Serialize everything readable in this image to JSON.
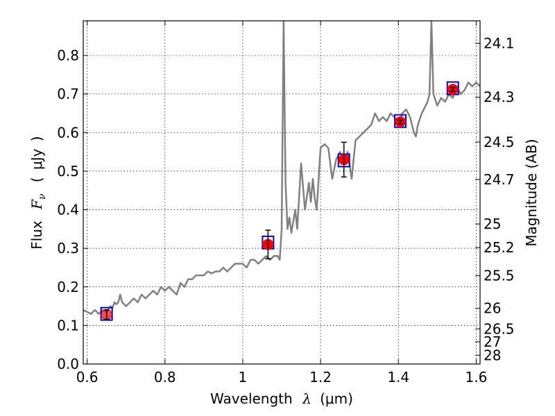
{
  "chart_data": {
    "type": "scatter",
    "title": "",
    "xlabel": {
      "text": "Wavelength",
      "symbol": "λ",
      "open": "(",
      "unit": "μm",
      "close": ")"
    },
    "ylabel": {
      "text": "Flux",
      "symbol": "F",
      "subscript": "ν",
      "open": "(",
      "unit": "μJy",
      "close": ")"
    },
    "y2label": "Magnitude (AB)",
    "xlim": [
      0.59,
      1.61
    ],
    "ylim": [
      0.0,
      0.89
    ],
    "grid": true,
    "xticks": [
      {
        "value": 0.6,
        "label": "0.6"
      },
      {
        "value": 0.8,
        "label": "0.8"
      },
      {
        "value": 1.0,
        "label": "1"
      },
      {
        "value": 1.2,
        "label": "1.2"
      },
      {
        "value": 1.4,
        "label": "1.4"
      },
      {
        "value": 1.6,
        "label": "1.6"
      }
    ],
    "yticks": [
      {
        "value": 0.0,
        "label": "0.0"
      },
      {
        "value": 0.1,
        "label": "0.1"
      },
      {
        "value": 0.2,
        "label": "0.2"
      },
      {
        "value": 0.3,
        "label": "0.3"
      },
      {
        "value": 0.4,
        "label": "0.4"
      },
      {
        "value": 0.5,
        "label": "0.5"
      },
      {
        "value": 0.6,
        "label": "0.6"
      },
      {
        "value": 0.7,
        "label": "0.7"
      },
      {
        "value": 0.8,
        "label": "0.8"
      }
    ],
    "y2ticks": [
      {
        "value": 24.1,
        "label": "24.1"
      },
      {
        "value": 24.3,
        "label": "24.3"
      },
      {
        "value": 24.5,
        "label": "24.5"
      },
      {
        "value": 24.7,
        "label": "24.7"
      },
      {
        "value": 25.0,
        "label": "25"
      },
      {
        "value": 25.2,
        "label": "25.2"
      },
      {
        "value": 25.5,
        "label": "25.5"
      },
      {
        "value": 26.0,
        "label": "26"
      },
      {
        "value": 26.5,
        "label": "26.5"
      },
      {
        "value": 27.0,
        "label": "27"
      },
      {
        "value": 28.0,
        "label": "28"
      }
    ],
    "series": [
      {
        "type": "line",
        "color": "#808080",
        "x": [
          0.59,
          0.6,
          0.61,
          0.62,
          0.63,
          0.64,
          0.65,
          0.66,
          0.665,
          0.67,
          0.675,
          0.68,
          0.685,
          0.69,
          0.7,
          0.71,
          0.72,
          0.73,
          0.74,
          0.75,
          0.76,
          0.77,
          0.78,
          0.79,
          0.8,
          0.81,
          0.82,
          0.83,
          0.84,
          0.85,
          0.86,
          0.87,
          0.88,
          0.89,
          0.9,
          0.91,
          0.92,
          0.93,
          0.94,
          0.95,
          0.96,
          0.97,
          0.98,
          0.99,
          1.0,
          1.01,
          1.02,
          1.03,
          1.04,
          1.05,
          1.06,
          1.07,
          1.08,
          1.09,
          1.095,
          1.1,
          1.105,
          1.11,
          1.115,
          1.12,
          1.125,
          1.13,
          1.135,
          1.14,
          1.15,
          1.16,
          1.17,
          1.175,
          1.18,
          1.185,
          1.19,
          1.2,
          1.21,
          1.22,
          1.23,
          1.24,
          1.25,
          1.26,
          1.27,
          1.28,
          1.29,
          1.3,
          1.31,
          1.32,
          1.33,
          1.34,
          1.35,
          1.36,
          1.37,
          1.38,
          1.39,
          1.4,
          1.41,
          1.42,
          1.43,
          1.44,
          1.445,
          1.45,
          1.46,
          1.47,
          1.475,
          1.48,
          1.485,
          1.49,
          1.5,
          1.51,
          1.52,
          1.53,
          1.54,
          1.55,
          1.56,
          1.57,
          1.58,
          1.59,
          1.6,
          1.61
        ],
        "y": [
          0.14,
          0.135,
          0.13,
          0.14,
          0.13,
          0.14,
          0.135,
          0.15,
          0.145,
          0.16,
          0.155,
          0.16,
          0.18,
          0.16,
          0.15,
          0.16,
          0.17,
          0.16,
          0.18,
          0.17,
          0.18,
          0.19,
          0.18,
          0.2,
          0.19,
          0.2,
          0.19,
          0.18,
          0.21,
          0.2,
          0.22,
          0.22,
          0.23,
          0.23,
          0.23,
          0.24,
          0.235,
          0.24,
          0.24,
          0.25,
          0.24,
          0.25,
          0.26,
          0.26,
          0.26,
          0.25,
          0.27,
          0.27,
          0.26,
          0.27,
          0.28,
          0.27,
          0.28,
          0.28,
          0.27,
          0.35,
          0.89,
          0.47,
          0.35,
          0.38,
          0.34,
          0.37,
          0.4,
          0.35,
          0.52,
          0.4,
          0.47,
          0.42,
          0.48,
          0.43,
          0.4,
          0.56,
          0.57,
          0.56,
          0.48,
          0.53,
          0.55,
          0.53,
          0.55,
          0.48,
          0.58,
          0.59,
          0.6,
          0.61,
          0.62,
          0.65,
          0.63,
          0.64,
          0.63,
          0.65,
          0.64,
          0.62,
          0.65,
          0.66,
          0.64,
          0.6,
          0.59,
          0.62,
          0.65,
          0.67,
          0.68,
          0.7,
          0.89,
          0.7,
          0.67,
          0.69,
          0.68,
          0.7,
          0.69,
          0.72,
          0.7,
          0.71,
          0.73,
          0.72,
          0.73,
          0.72
        ]
      },
      {
        "type": "scatter",
        "marker": "square-open",
        "color": "#0000cc",
        "x": [
          0.65,
          1.065,
          1.26,
          1.405,
          1.54
        ],
        "y": [
          0.13,
          0.315,
          0.528,
          0.63,
          0.715
        ]
      },
      {
        "type": "scatter",
        "marker": "circle-filled-errorbar",
        "color": "#ff0000",
        "x": [
          0.65,
          1.065,
          1.26,
          1.405,
          1.54
        ],
        "y": [
          0.128,
          0.31,
          0.53,
          0.628,
          0.712
        ],
        "yerr": [
          0.012,
          0.037,
          0.045,
          0.005,
          0.005
        ]
      }
    ]
  }
}
